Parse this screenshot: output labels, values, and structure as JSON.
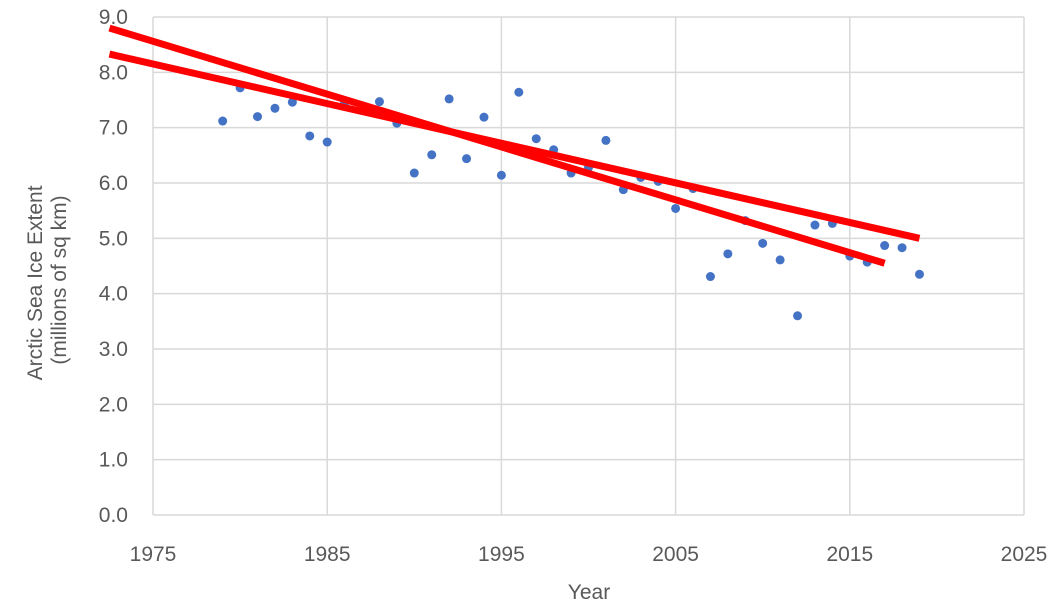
{
  "chart_data": {
    "type": "scatter",
    "title": "",
    "xlabel": "Year",
    "ylabel_lines": [
      "Arctic Sea Ice Extent",
      "(millions of sq km)"
    ],
    "xlim": [
      1975,
      2025
    ],
    "ylim": [
      0,
      9
    ],
    "x_ticks": [
      1975,
      1985,
      1995,
      2005,
      2015,
      2025
    ],
    "y_ticks": [
      "0.0",
      "1.0",
      "2.0",
      "3.0",
      "4.0",
      "5.0",
      "6.0",
      "7.0",
      "8.0",
      "9.0"
    ],
    "grid": true,
    "legend": "none",
    "point_color": "#4472c4",
    "trend_color": "#ff0000",
    "series": [
      {
        "x": [
          1979,
          1980,
          1981,
          1982,
          1983,
          1984,
          1985,
          1986,
          1987,
          1988,
          1989,
          1990,
          1991,
          1992,
          1993,
          1994,
          1995,
          1996,
          1997,
          1998,
          1999,
          2000,
          2001,
          2002,
          2003,
          2004,
          2005,
          2006,
          2007,
          2008,
          2009,
          2010,
          2011,
          2012,
          2013,
          2014,
          2015,
          2016,
          2017,
          2018,
          2019
        ],
        "y": [
          7.12,
          7.72,
          7.2,
          7.35,
          7.46,
          6.85,
          6.74,
          7.45,
          7.35,
          7.47,
          7.08,
          6.18,
          6.51,
          7.52,
          6.44,
          7.19,
          6.14,
          7.64,
          6.8,
          6.6,
          6.18,
          6.28,
          6.77,
          5.88,
          6.1,
          6.03,
          5.54,
          5.9,
          4.31,
          4.72,
          5.32,
          4.91,
          4.61,
          3.6,
          5.24,
          5.27,
          4.68,
          4.57,
          4.87,
          4.83,
          4.35
        ]
      }
    ],
    "trendlines": [
      {
        "x": [
          1972.5,
          2019
        ],
        "y": [
          8.33,
          5.0
        ]
      },
      {
        "x": [
          1972.5,
          2017
        ],
        "y": [
          8.8,
          4.55
        ]
      }
    ]
  }
}
